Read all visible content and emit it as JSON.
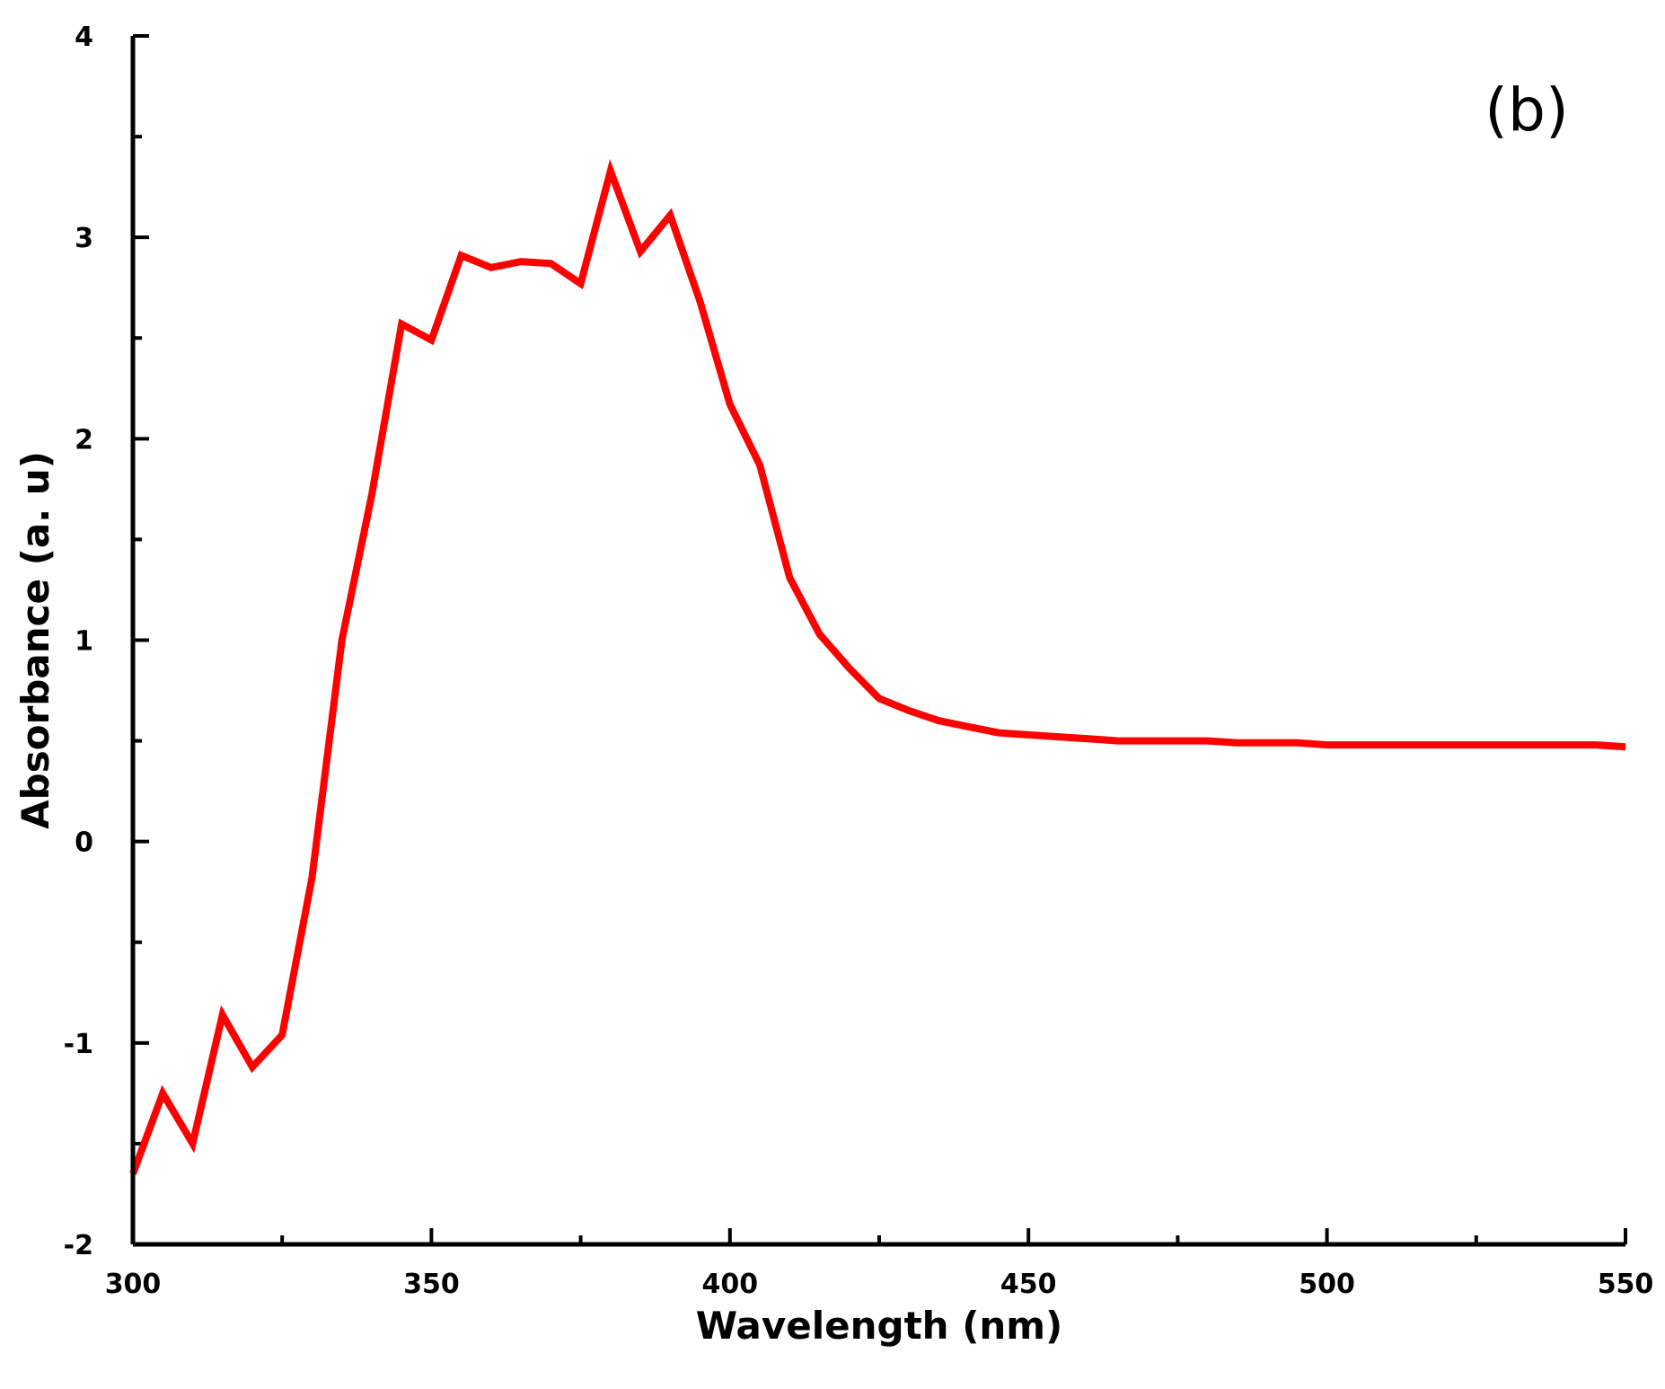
{
  "chart_data": {
    "type": "line",
    "panel_label": "(b)",
    "xlabel": "Wavelength (nm)",
    "ylabel": "Absorbance (a. u)",
    "xlim": [
      300,
      550
    ],
    "ylim": [
      -2,
      4
    ],
    "x_ticks": [
      300,
      350,
      400,
      450,
      500,
      550
    ],
    "x_tick_labels": [
      "300",
      "350",
      "400",
      "450",
      "500",
      "550"
    ],
    "x_minor_ticks": [
      325,
      375,
      425,
      475,
      525
    ],
    "y_ticks": [
      -2,
      -1,
      0,
      1,
      2,
      3,
      4
    ],
    "y_tick_labels": [
      "-2",
      "-1",
      "0",
      "1",
      "2",
      "3",
      "4"
    ],
    "y_minor_ticks": [
      -1.5,
      -0.5,
      0.5,
      1.5,
      2.5,
      3.5
    ],
    "grid": false,
    "legend": "none",
    "series": [
      {
        "color": "#ff0000",
        "x": [
          300,
          305,
          310,
          315,
          320,
          325,
          330,
          335,
          340,
          345,
          350,
          355,
          360,
          365,
          370,
          375,
          380,
          385,
          390,
          395,
          400,
          405,
          410,
          415,
          420,
          425,
          430,
          435,
          440,
          445,
          450,
          455,
          460,
          465,
          470,
          475,
          480,
          485,
          490,
          495,
          500,
          505,
          510,
          515,
          520,
          525,
          530,
          535,
          540,
          545,
          550
        ],
        "y": [
          -1.65,
          -1.25,
          -1.5,
          -0.86,
          -1.12,
          -0.96,
          -0.18,
          1.0,
          1.72,
          2.57,
          2.49,
          2.91,
          2.85,
          2.88,
          2.87,
          2.77,
          3.33,
          2.93,
          3.11,
          2.68,
          2.17,
          1.87,
          1.31,
          1.03,
          0.86,
          0.71,
          0.65,
          0.6,
          0.57,
          0.54,
          0.53,
          0.52,
          0.51,
          0.5,
          0.5,
          0.5,
          0.5,
          0.49,
          0.49,
          0.49,
          0.48,
          0.48,
          0.48,
          0.48,
          0.48,
          0.48,
          0.48,
          0.48,
          0.48,
          0.48,
          0.47
        ]
      }
    ]
  }
}
